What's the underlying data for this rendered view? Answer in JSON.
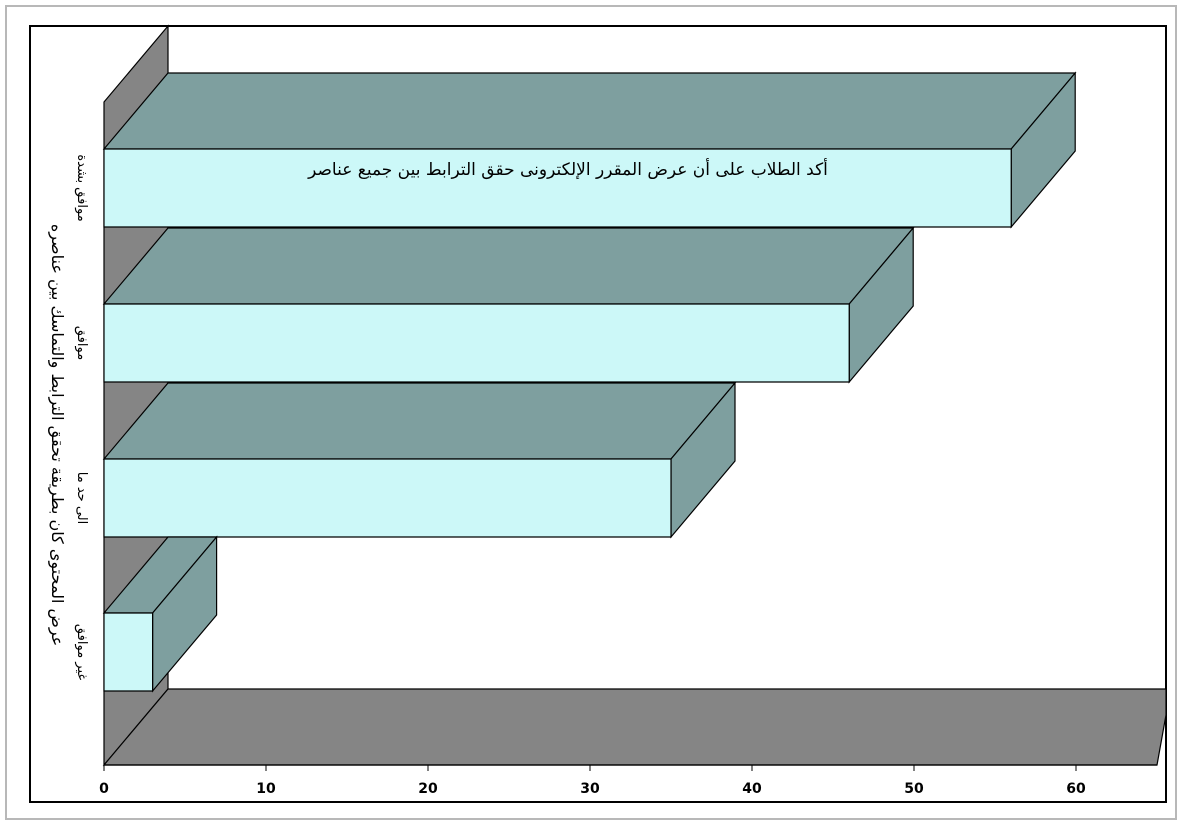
{
  "chart_data": {
    "type": "bar",
    "orientation": "horizontal",
    "three_d": true,
    "title": "أكد الطلاب على أن عرض المقرر الإلكترونى حقق الترابط بين جميع عناصر",
    "ylabel": "عرض المحتوى كان بطريقة تحقق الترابط والتماسك بين عناصره",
    "xlabel": "",
    "categories": [
      "موافق بشدة",
      "موافق",
      "الى حد ما",
      "غير موافق"
    ],
    "values": [
      56,
      46,
      35,
      3
    ],
    "xlim": [
      0,
      65
    ],
    "x_ticks": [
      "0",
      "10",
      "20",
      "30",
      "40",
      "50",
      "60"
    ],
    "grid": false,
    "colors": {
      "bar_front": "#ccf8f8",
      "bar_top": "#7e9f9f",
      "bar_side": "#7e9f9f",
      "wall": "#858585",
      "floor": "#858585"
    }
  }
}
